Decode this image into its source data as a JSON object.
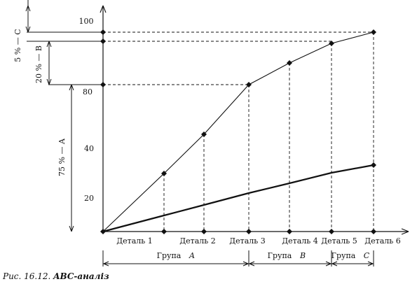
{
  "chart_data": {
    "type": "line",
    "x_categories": [
      "",
      "Деталь 1",
      "Деталь 2",
      "Деталь 3",
      "Деталь 4",
      "Деталь 5",
      "Деталь 6"
    ],
    "y_ticks": [
      "20",
      "40",
      "80",
      "100"
    ],
    "series": [
      {
        "values": [
          0,
          35,
          60,
          78,
          88,
          95,
          100
        ]
      },
      {
        "values": [
          0,
          6,
          12,
          17,
          20,
          27,
          30
        ]
      }
    ],
    "groups": [
      {
        "label": "Група",
        "letter": "A"
      },
      {
        "label": "Група",
        "letter": "B"
      },
      {
        "label": "Група",
        "letter": "C"
      }
    ],
    "left_brackets": [
      {
        "label": "75 % — A"
      },
      {
        "label": "20 % — B"
      },
      {
        "label": "5 % — C"
      }
    ],
    "caption": {
      "prefix": "Рис. 16.12.",
      "text": "ABC-аналіз"
    }
  }
}
